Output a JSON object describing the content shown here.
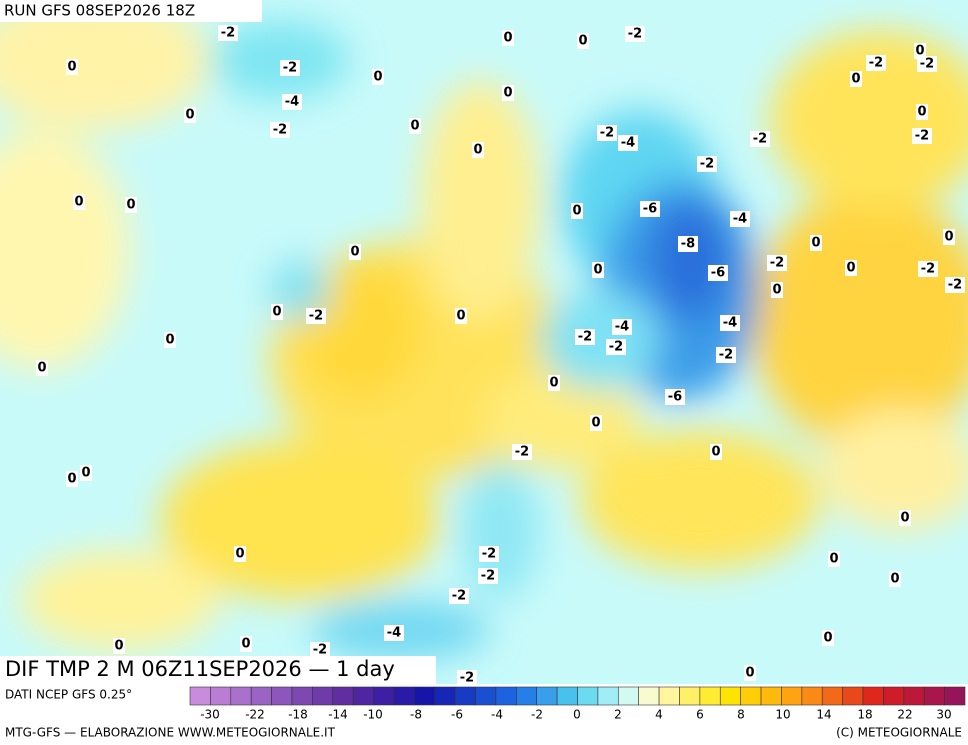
{
  "header": {
    "run": "RUN GFS 08SEP2026 18Z",
    "product": "DIF TMP 2 M 06Z11SEP2026 — 1 day"
  },
  "footer": {
    "source": "DATI NCEP GFS 0.25°",
    "credit": "MTG-GFS — ELABORAZIONE WWW.METEOGIORNALE.IT",
    "copyright": "(C) METEOGIORNALE"
  },
  "colorbar": {
    "labels": [
      -30,
      -22,
      -18,
      -14,
      -10,
      -8,
      -6,
      -4,
      -2,
      0,
      2,
      4,
      6,
      8,
      10,
      14,
      18,
      22,
      30
    ]
  },
  "map_labels": [
    -2,
    0,
    -2,
    -4,
    0,
    0,
    -2,
    0,
    0,
    0,
    -2,
    0,
    0,
    -2,
    -4,
    -2,
    -2,
    0,
    -2,
    0,
    -2,
    0,
    -2,
    0,
    0,
    0,
    -6,
    -4,
    -8,
    0,
    0,
    -2,
    -6,
    0,
    -2,
    -2,
    0,
    0,
    0,
    0,
    -2,
    0,
    0,
    -2,
    -4,
    -2,
    -4,
    -2,
    0,
    0,
    -6,
    0,
    -2,
    0,
    0,
    0,
    0,
    0,
    -2,
    -2,
    0,
    0,
    -2,
    -4,
    -2,
    0,
    0,
    0,
    0,
    -2
  ]
}
